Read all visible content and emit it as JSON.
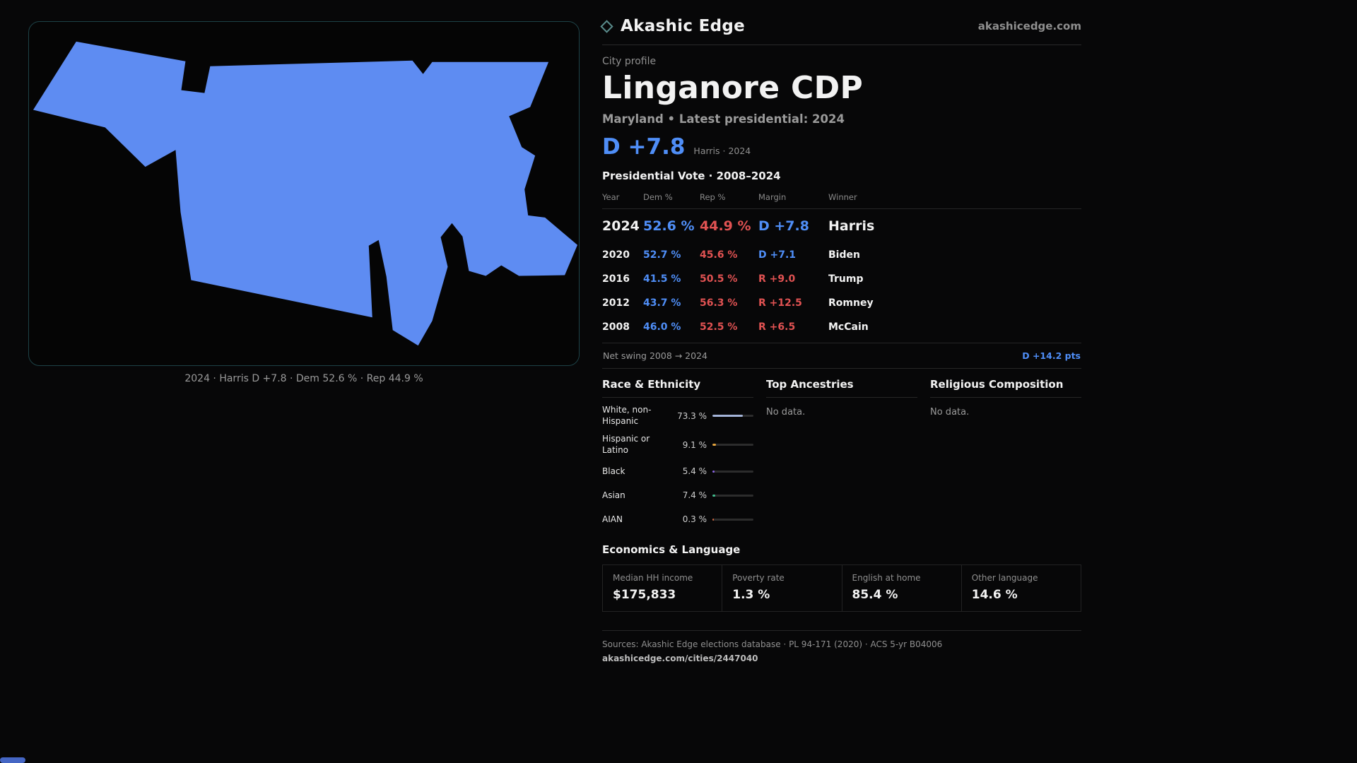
{
  "theme": {
    "dem-blue": "#4f8ef7",
    "rep-red": "#e05252",
    "map-fill": "#5e8cf2",
    "panel-border": "#1d4247",
    "scroll-thumb": "#4566c4"
  },
  "brand": {
    "name": "Akashic Edge",
    "domain": "akashicedge.com"
  },
  "profile": {
    "kicker": "City profile",
    "title": "Linganore CDP",
    "subtitle": "Maryland • Latest presidential: 2024",
    "headline_margin": "D +7.8",
    "headline_note": "Harris · 2024"
  },
  "map": {
    "caption": "2024 · Harris D +7.8 · Dem 52.6 % · Rep 44.9 %"
  },
  "vote_table": {
    "title": "Presidential Vote · 2008–2024",
    "columns": [
      "Year",
      "Dem %",
      "Rep %",
      "Margin",
      "Winner"
    ],
    "rows": [
      {
        "year": "2024",
        "dem": "52.6 %",
        "rep": "44.9 %",
        "margin": "D +7.8",
        "winner": "Harris",
        "margin_party": "D"
      },
      {
        "year": "2020",
        "dem": "52.7 %",
        "rep": "45.6 %",
        "margin": "D +7.1",
        "winner": "Biden",
        "margin_party": "D"
      },
      {
        "year": "2016",
        "dem": "41.5 %",
        "rep": "50.5 %",
        "margin": "R +9.0",
        "winner": "Trump",
        "margin_party": "R"
      },
      {
        "year": "2012",
        "dem": "43.7 %",
        "rep": "56.3 %",
        "margin": "R +12.5",
        "winner": "Romney",
        "margin_party": "R"
      },
      {
        "year": "2008",
        "dem": "46.0 %",
        "rep": "52.5 %",
        "margin": "R +6.5",
        "winner": "McCain",
        "margin_party": "R"
      }
    ],
    "net_swing_label": "Net swing 2008 → 2024",
    "net_swing_value": "D +14.2 pts"
  },
  "demographics": {
    "race_title": "Race & Ethnicity",
    "race_rows": [
      {
        "label": "White, non-Hispanic",
        "value": "73.3 %",
        "pct": 73.3,
        "color": "#a4b4d8"
      },
      {
        "label": "Hispanic or Latino",
        "value": "9.1 %",
        "pct": 9.1,
        "color": "#e5a33c"
      },
      {
        "label": "Black",
        "value": "5.4 %",
        "pct": 5.4,
        "color": "#8a63e8"
      },
      {
        "label": "Asian",
        "value": "7.4 %",
        "pct": 7.4,
        "color": "#3fbf8f"
      },
      {
        "label": "AIAN",
        "value": "0.3 %",
        "pct": 0.3,
        "color": "#d96a3f"
      }
    ],
    "ancestries_title": "Top Ancestries",
    "ancestries_empty": "No data.",
    "religion_title": "Religious Composition",
    "religion_empty": "No data."
  },
  "economics": {
    "title": "Economics & Language",
    "stats": [
      {
        "label": "Median HH income",
        "value": "$175,833"
      },
      {
        "label": "Poverty rate",
        "value": "1.3 %"
      },
      {
        "label": "English at home",
        "value": "85.4 %"
      },
      {
        "label": "Other language",
        "value": "14.6 %"
      }
    ]
  },
  "footer": {
    "sources": "Sources: Akashic Edge elections database · PL 94-171 (2020) · ACS 5-yr B04006",
    "permalink": "akashicedge.com/cities/2447040"
  }
}
